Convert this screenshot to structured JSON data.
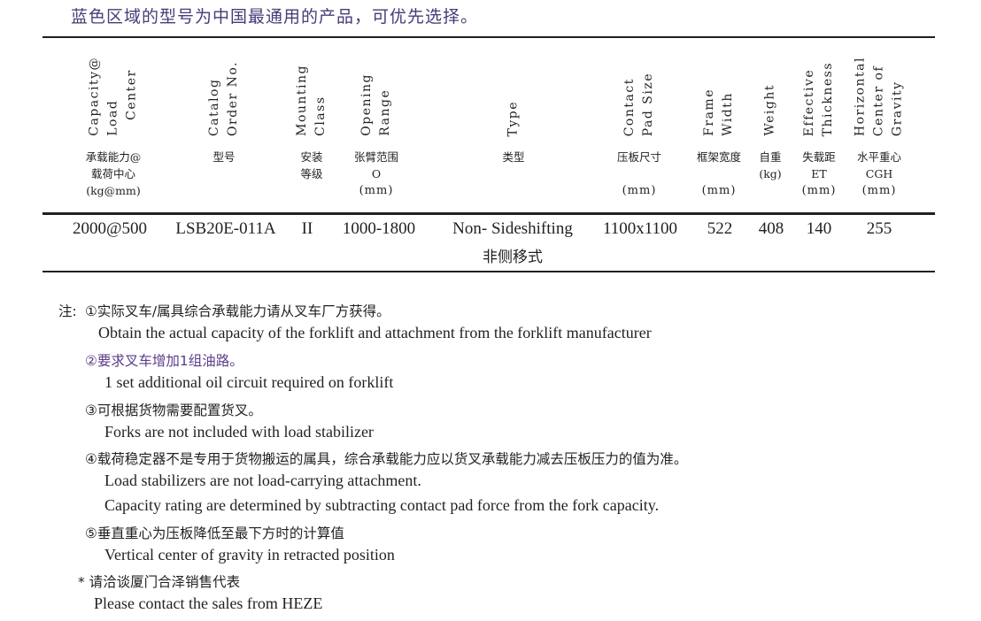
{
  "title": "蓝色区域的型号为中国最通用的产品，可优先选择。",
  "colors": {
    "title": "#4a3a78",
    "note_highlight": "#5a3d8a",
    "text": "#231f20"
  },
  "columns": [
    {
      "en": "Capacity@\nLoad\n   Center",
      "cn": "承载能力@\n载荷中心\n(kg@mm)",
      "unit": ""
    },
    {
      "en": "Catalog\nOrder No.",
      "cn": "型号",
      "unit": ""
    },
    {
      "en": "Mounting\nClass",
      "cn": "安装\n等级",
      "unit": ""
    },
    {
      "en": "Opening\nRange",
      "cn": "张臂范围\nO",
      "unit": "(mm)"
    },
    {
      "en": "Type",
      "cn": "类型",
      "unit": ""
    },
    {
      "en": "Contact\nPad Size",
      "cn": "压板尺寸",
      "unit": "(mm)"
    },
    {
      "en": "Frame\nWidth",
      "cn": "框架宽度",
      "unit": "(mm)"
    },
    {
      "en": "Weight",
      "cn": "自重\n(kg)",
      "unit": ""
    },
    {
      "en": "Effective\nThickness",
      "cn": "失载距\nET",
      "unit": "(mm)"
    },
    {
      "en": "Horizontal\nCenter of\nGravity",
      "cn": "水平重心\nCGH",
      "unit": "(mm)"
    }
  ],
  "row": {
    "capacity": "2000@500",
    "catalog": "LSB20E-011A",
    "mounting": "II",
    "opening": "1000-1800",
    "type": "Non- Sideshifting",
    "type_cn": "非侧移式",
    "pad": "1100x1100",
    "frame": "522",
    "weight": "408",
    "et": "140",
    "cgh": "255"
  },
  "notes": {
    "prefix": "注:",
    "n1_cn": "①实际叉车/属具综合承载能力请从叉车厂方获得。",
    "n1_en": "Obtain the actual capacity of the forklift and attachment from the forklift manufacturer",
    "n2_cn": "②要求叉车增加1组油路。",
    "n2_en": "1 set additional oil circuit required on forklift",
    "n3_cn": "③可根据货物需要配置货叉。",
    "n3_en": "Forks are not included with load stabilizer",
    "n4_cn": "④载荷稳定器不是专用于货物搬运的属具，综合承载能力应以货叉承载能力减去压板压力的值为准。",
    "n4_en1": "Load stabilizers are not load-carrying attachment.",
    "n4_en2": "Capacity rating are determined by subtracting contact pad force from the fork capacity.",
    "n5_cn": "⑤垂直重心为压板降低至最下方时的计算值",
    "n5_en": "Vertical center of gravity in retracted position",
    "n6_cn": "* 请洽谈厦门合泽销售代表",
    "n6_en": "Please contact the sales from HEZE"
  }
}
